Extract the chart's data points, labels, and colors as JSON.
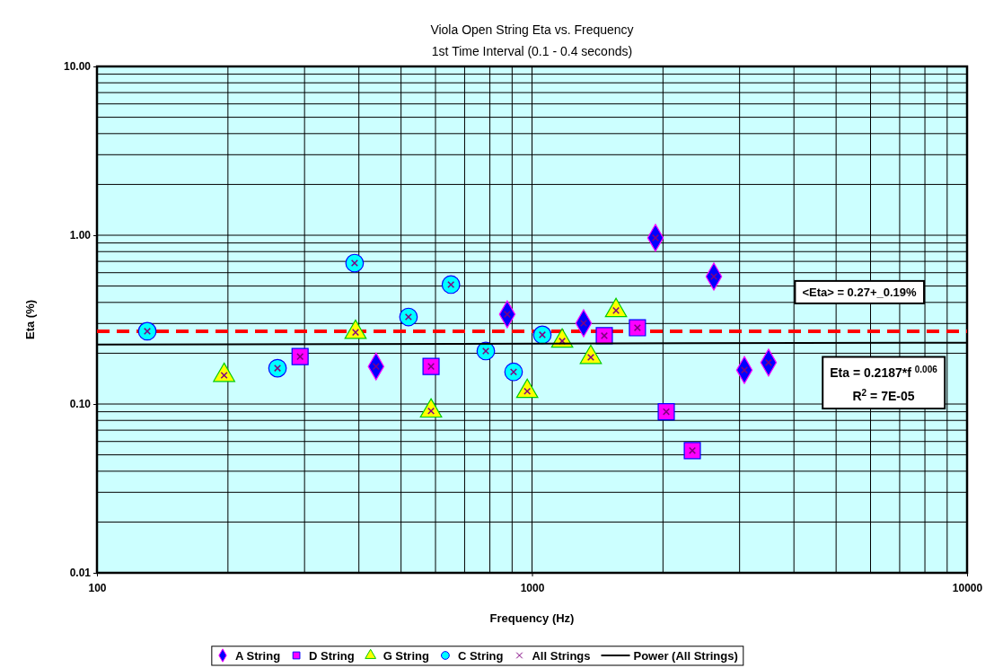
{
  "chart_data": {
    "type": "scatter",
    "title": "Viola Open String Eta vs. Frequency",
    "subtitle": "1st Time Interval (0.1 - 0.4 seconds)",
    "xlabel": "Frequency (Hz)",
    "ylabel": "Eta (%)",
    "log": "xy",
    "xlim": [
      100,
      10000
    ],
    "ylim": [
      0.01,
      10
    ],
    "xticks": [
      100,
      1000,
      10000
    ],
    "yticks": [
      {
        "value": 0.01,
        "label": "0.01"
      },
      {
        "value": 0.1,
        "label": "0.10"
      },
      {
        "value": 1,
        "label": "1.00"
      },
      {
        "value": 10,
        "label": "10.00"
      }
    ],
    "grid": true,
    "legend": "bottom",
    "series": [
      {
        "name": "A String",
        "color": "#0000ff",
        "marker": "diamond",
        "x": [
          438,
          877,
          1314,
          1922,
          2618,
          3077,
          3497
        ],
        "values": [
          0.167,
          0.34,
          0.301,
          0.965,
          0.569,
          0.159,
          0.176
        ]
      },
      {
        "name": "D String",
        "color": "#ff00ff",
        "marker": "square",
        "x": [
          293,
          586,
          1466,
          1747,
          2035,
          2336
        ],
        "values": [
          0.191,
          0.167,
          0.254,
          0.283,
          0.09,
          0.053
        ]
      },
      {
        "name": "G String",
        "color": "#ffff00",
        "marker": "triangle",
        "x": [
          196,
          393,
          586,
          975,
          1173,
          1365,
          1560
        ],
        "values": [
          0.148,
          0.266,
          0.091,
          0.119,
          0.236,
          0.189,
          0.358
        ]
      },
      {
        "name": "C String",
        "color": "#00ffff",
        "marker": "circle",
        "x": [
          130.5,
          260,
          391,
          520,
          651,
          783,
          907,
          1056
        ],
        "values": [
          0.27,
          0.163,
          0.684,
          0.328,
          0.51,
          0.206,
          0.155,
          0.257
        ]
      },
      {
        "name": "All Strings",
        "color": "#800080",
        "marker": "cross",
        "x": [
          438,
          877,
          1314,
          1922,
          2618,
          3077,
          3497,
          293,
          586,
          1466,
          1747,
          2035,
          2336,
          196,
          393,
          586,
          975,
          1173,
          1365,
          1560,
          130.5,
          260,
          391,
          520,
          651,
          783,
          907,
          1056
        ],
        "values": [
          0.167,
          0.34,
          0.301,
          0.965,
          0.569,
          0.159,
          0.176,
          0.191,
          0.167,
          0.254,
          0.283,
          0.09,
          0.053,
          0.148,
          0.266,
          0.091,
          0.119,
          0.236,
          0.189,
          0.358,
          0.27,
          0.163,
          0.684,
          0.328,
          0.51,
          0.206,
          0.155,
          0.257
        ]
      },
      {
        "name": "Power (All Strings)",
        "type": "line",
        "color": "#000000",
        "marker": "none",
        "line_style": "solid",
        "x": [
          100,
          10000
        ],
        "values": [
          0.225,
          0.231
        ]
      }
    ],
    "ref_lines": [
      {
        "axis": "y",
        "value": 0.27,
        "label": "<Eta> = 0.27+_0.19%",
        "color": "#ff0000",
        "line_style": "dashed"
      }
    ],
    "annotations": [
      "Eta = 0.2187*f $^{0.006}$",
      "R$^{2}$ = 7E-05"
    ]
  }
}
